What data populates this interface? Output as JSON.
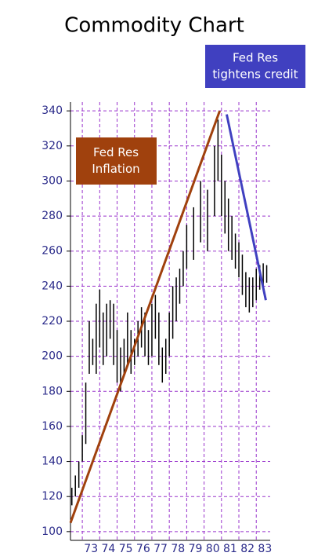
{
  "chart_data": {
    "type": "hilo",
    "title": "Commodity Chart",
    "x": [
      1972.4,
      1972.6,
      1972.8,
      1973.0,
      1973.2,
      1973.4,
      1973.6,
      1973.8,
      1974.0,
      1974.2,
      1974.4,
      1974.6,
      1974.8,
      1975.0,
      1975.2,
      1975.4,
      1975.6,
      1975.8,
      1976.0,
      1976.2,
      1976.4,
      1976.6,
      1976.8,
      1977.0,
      1977.2,
      1977.4,
      1977.6,
      1977.8,
      1978.0,
      1978.2,
      1978.4,
      1978.6,
      1978.8,
      1979.0,
      1979.4,
      1979.8,
      1980.2,
      1980.6,
      1980.8,
      1981.0,
      1981.2,
      1981.4,
      1981.6,
      1981.8,
      1982.0,
      1982.2,
      1982.4,
      1982.6,
      1982.8,
      1983.0,
      1983.2,
      1983.4,
      1983.6
    ],
    "high": [
      125,
      132,
      140,
      155,
      185,
      220,
      210,
      230,
      238,
      225,
      230,
      232,
      230,
      215,
      205,
      210,
      225,
      215,
      210,
      220,
      228,
      225,
      215,
      230,
      235,
      225,
      205,
      210,
      225,
      240,
      245,
      250,
      260,
      275,
      285,
      300,
      295,
      320,
      335,
      315,
      300,
      290,
      280,
      270,
      265,
      258,
      248,
      245,
      245,
      250,
      252,
      253,
      252
    ],
    "low": [
      115,
      120,
      125,
      140,
      150,
      190,
      195,
      190,
      205,
      195,
      200,
      210,
      195,
      185,
      180,
      190,
      195,
      190,
      195,
      200,
      205,
      200,
      195,
      200,
      210,
      195,
      185,
      190,
      200,
      210,
      220,
      230,
      240,
      250,
      255,
      265,
      260,
      280,
      300,
      280,
      270,
      260,
      255,
      250,
      245,
      235,
      228,
      225,
      228,
      232,
      238,
      240,
      242
    ],
    "color": "#000000",
    "ylim": [
      95,
      345
    ],
    "yticks": [
      100,
      120,
      140,
      160,
      180,
      200,
      220,
      240,
      260,
      280,
      300,
      320,
      340
    ],
    "xlim": [
      1972.32,
      1983.8
    ],
    "xticks": [
      {
        "value": 1973.5,
        "label": "73"
      },
      {
        "value": 1974.5,
        "label": "74"
      },
      {
        "value": 1975.5,
        "label": "75"
      },
      {
        "value": 1976.5,
        "label": "76"
      },
      {
        "value": 1977.5,
        "label": "77"
      },
      {
        "value": 1978.5,
        "label": "78"
      },
      {
        "value": 1979.5,
        "label": "79"
      },
      {
        "value": 1980.5,
        "label": "80"
      },
      {
        "value": 1981.5,
        "label": "81"
      },
      {
        "value": 1982.5,
        "label": "82"
      },
      {
        "value": 1983.5,
        "label": "83"
      }
    ],
    "xgrid": [
      1973,
      1974,
      1975,
      1976,
      1977,
      1978,
      1979,
      1980,
      1981,
      1982,
      1983
    ],
    "grid": true,
    "grid_color": "#9933cc",
    "trendlines": [
      {
        "x": [
          1972.32,
          1980.9
        ],
        "y": [
          105,
          340
        ],
        "color": "#a0410d"
      },
      {
        "x": [
          1981.3,
          1983.55
        ],
        "y": [
          338,
          232
        ],
        "color": "#4040c0"
      }
    ],
    "annotations": [
      {
        "lines": [
          "Fed Res",
          "Inflation"
        ],
        "color": "#a0410d"
      },
      {
        "lines": [
          "Fed Res",
          "tightens credit"
        ],
        "color": "#4040c0"
      }
    ]
  }
}
